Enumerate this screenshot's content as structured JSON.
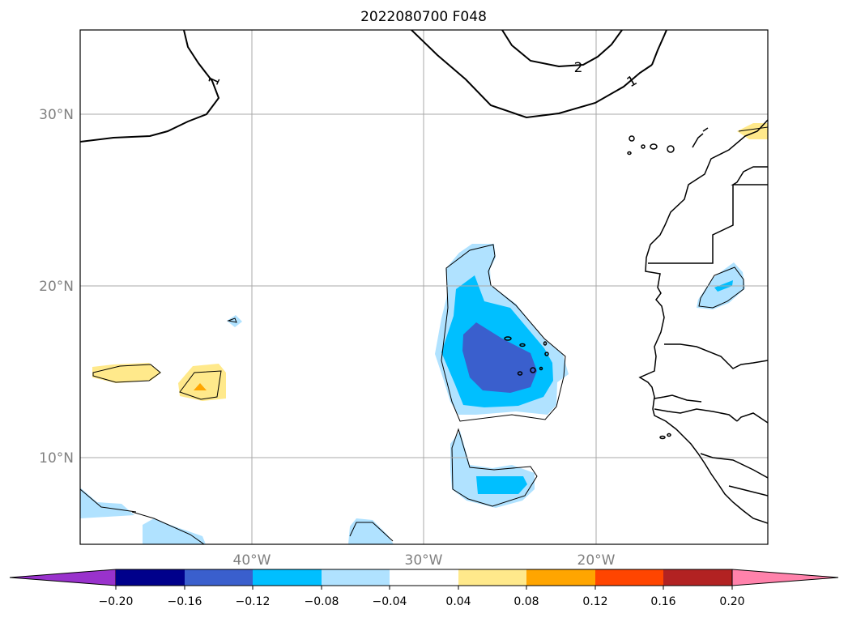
{
  "title": "2022080700 F048",
  "map": {
    "lat_labels": [
      "30°N",
      "20°N",
      "10°N"
    ],
    "lon_labels": [
      "40°W",
      "30°W",
      "20°W"
    ],
    "contour_labels": [
      "1",
      "2",
      "1"
    ]
  },
  "colorbar": {
    "ticks": [
      "−0.20",
      "−0.16",
      "−0.12",
      "−0.08",
      "−0.04",
      "0.04",
      "0.08",
      "0.12",
      "0.16",
      "0.20"
    ],
    "colors": {
      "under": "#9932cc",
      "m020_m016": "#00008b",
      "m016_m012": "#3a5fcd",
      "m012_m008": "#00bfff",
      "m008_m004": "#b0e2ff",
      "m004_004": "#ffffff",
      "p004_008": "#ffe98b",
      "p008_012": "#ffa500",
      "p012_016": "#ff4500",
      "p016_020": "#b22222",
      "over": "#ff82ab"
    }
  }
}
